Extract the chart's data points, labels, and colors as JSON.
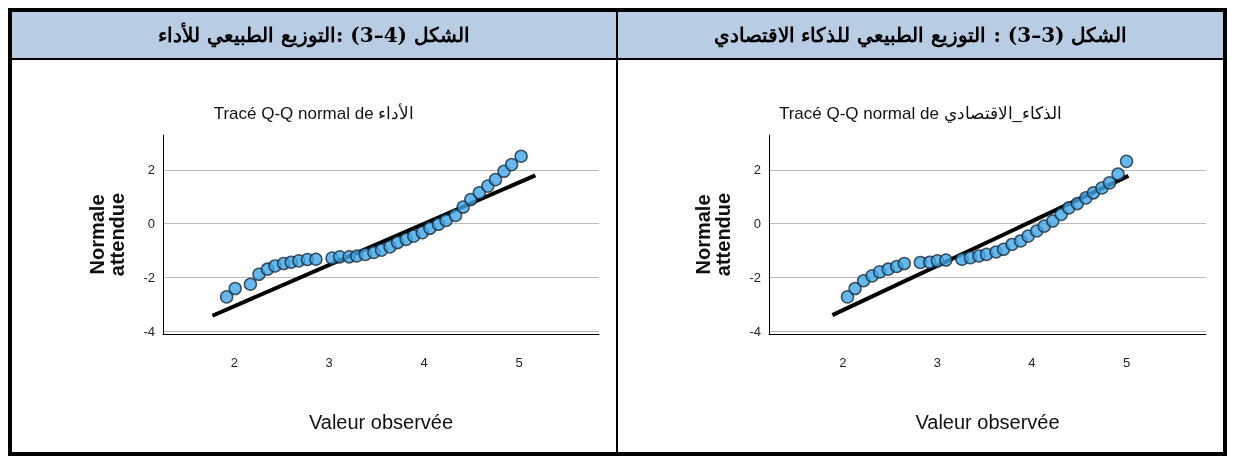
{
  "chart_data": [
    {
      "type": "scatter",
      "title": "الشكل (3–3) : التوزيع الطبيعي للذكاء الاقتصادي",
      "subtitle": "Tracé Q-Q normal de الذكاء_الاقتصادي",
      "xlabel": "Valeur observée",
      "ylabel": "Normale attendue",
      "xlim": [
        1.22,
        5.84
      ],
      "ylim": [
        -4.1,
        3.3
      ],
      "xticks": [
        2,
        3,
        4,
        5
      ],
      "yticks": [
        -4,
        -2,
        0,
        2
      ],
      "grid": "y",
      "series": [
        {
          "marker": "circle",
          "color": "#41a8e8",
          "x": [
            2.05,
            2.13,
            2.22,
            2.31,
            2.39,
            2.48,
            2.57,
            2.65,
            2.82,
            2.92,
            3.0,
            3.09,
            3.26,
            3.35,
            3.44,
            3.52,
            3.62,
            3.7,
            3.79,
            3.88,
            3.96,
            4.05,
            4.13,
            4.22,
            4.31,
            4.39,
            4.48,
            4.57,
            4.65,
            4.74,
            4.82,
            4.91,
            5.0
          ],
          "values": [
            -2.72,
            -2.41,
            -2.12,
            -1.94,
            -1.79,
            -1.69,
            -1.59,
            -1.48,
            -1.44,
            -1.43,
            -1.38,
            -1.35,
            -1.32,
            -1.26,
            -1.2,
            -1.14,
            -1.05,
            -0.95,
            -0.77,
            -0.64,
            -0.46,
            -0.27,
            -0.09,
            0.1,
            0.35,
            0.59,
            0.75,
            0.96,
            1.15,
            1.33,
            1.52,
            1.85,
            2.32
          ]
        },
        {
          "type": "line",
          "color": "#000000",
          "x": [
            1.89,
            5.02
          ],
          "values": [
            -3.4,
            1.78
          ]
        }
      ]
    },
    {
      "type": "scatter",
      "title": "الشكل (4–3) :التوزيع الطبيعي للأداء",
      "subtitle": "Tracé Q-Q normal de الأداء",
      "xlabel": "Valeur observée",
      "ylabel": "Normale attendue",
      "xlim": [
        1.25,
        5.84
      ],
      "ylim": [
        -4.1,
        3.3
      ],
      "xticks": [
        2,
        3,
        4,
        5
      ],
      "yticks": [
        -4,
        -2,
        0,
        2
      ],
      "grid": "y",
      "series": [
        {
          "marker": "circle",
          "color": "#41a8e8",
          "x": [
            1.92,
            2.01,
            2.17,
            2.26,
            2.35,
            2.43,
            2.52,
            2.6,
            2.68,
            2.77,
            2.86,
            3.03,
            3.11,
            3.21,
            3.29,
            3.38,
            3.47,
            3.55,
            3.64,
            3.72,
            3.81,
            3.89,
            3.98,
            4.06,
            4.15,
            4.23,
            4.33,
            4.41,
            4.49,
            4.58,
            4.67,
            4.75,
            4.84,
            4.92,
            5.02
          ],
          "values": [
            -2.72,
            -2.41,
            -2.25,
            -1.88,
            -1.69,
            -1.57,
            -1.48,
            -1.43,
            -1.38,
            -1.33,
            -1.32,
            -1.28,
            -1.23,
            -1.23,
            -1.2,
            -1.14,
            -1.07,
            -0.98,
            -0.86,
            -0.7,
            -0.58,
            -0.46,
            -0.33,
            -0.17,
            -0.02,
            0.12,
            0.31,
            0.62,
            0.9,
            1.15,
            1.4,
            1.64,
            1.95,
            2.2,
            2.51
          ]
        },
        {
          "type": "line",
          "color": "#000000",
          "x": [
            1.77,
            5.17
          ],
          "values": [
            -3.42,
            1.8
          ]
        }
      ]
    }
  ]
}
